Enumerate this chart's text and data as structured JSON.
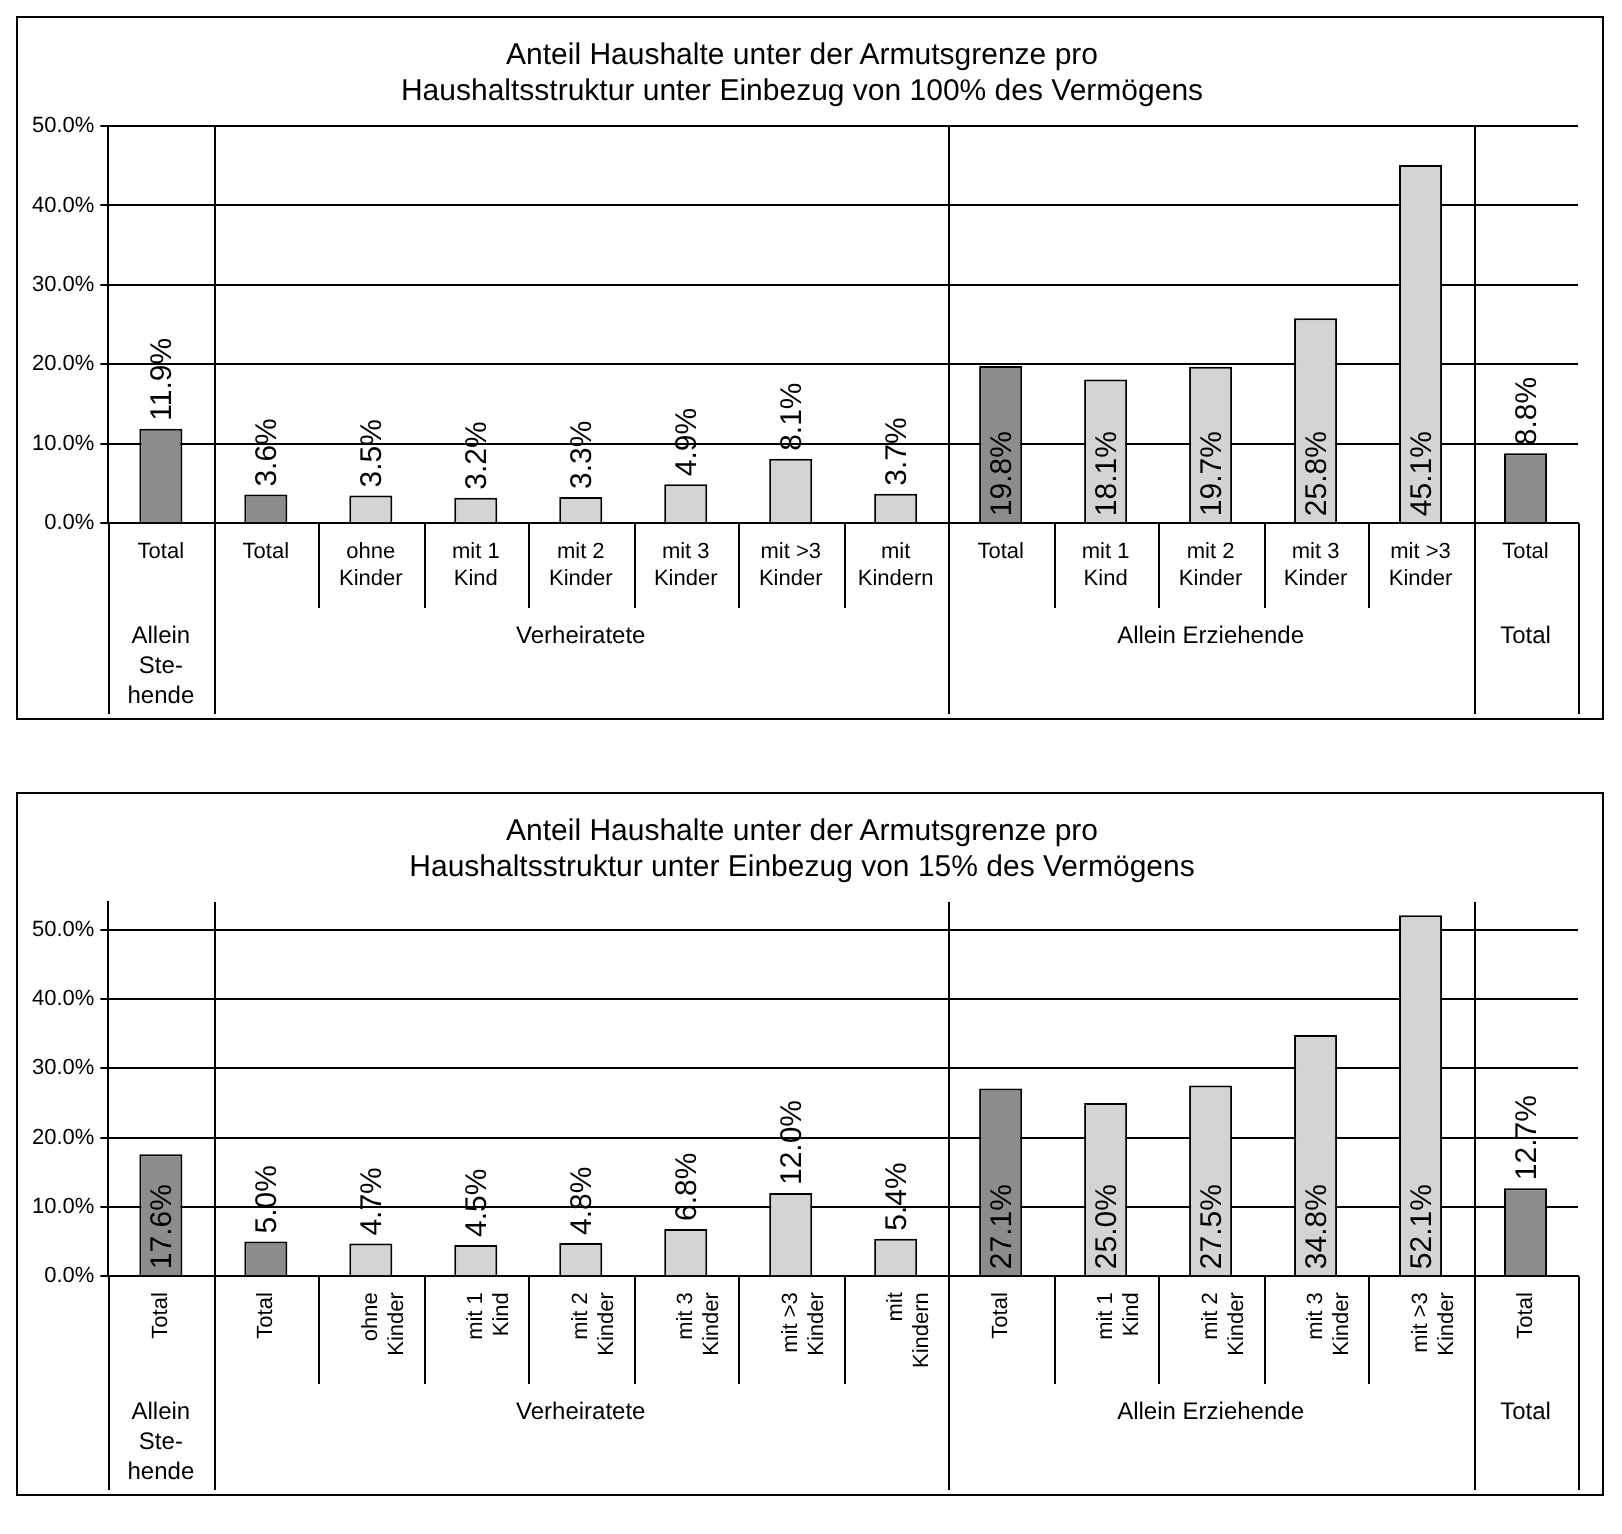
{
  "chart_data": [
    {
      "type": "bar",
      "title": "Anteil Haushalte unter der Armutsgrenze pro Haushaltsstruktur unter Einbezug von 100% des Vermögens",
      "categories": [
        "Total",
        "Total",
        "ohne Kinder",
        "mit 1 Kind",
        "mit 2 Kinder",
        "mit 3 Kinder",
        "mit >3 Kinder",
        "mit Kindern",
        "Total",
        "mit 1 Kind",
        "mit 2 Kinder",
        "mit 3 Kinder",
        "mit >3 Kinder",
        "Total"
      ],
      "values": [
        11.9,
        3.6,
        3.5,
        3.2,
        3.3,
        4.9,
        8.1,
        3.7,
        19.8,
        18.1,
        19.7,
        25.8,
        45.1,
        8.8
      ],
      "value_labels": [
        "11.9%",
        "3.6%",
        "3.5%",
        "3.2%",
        "3.3%",
        "4.9%",
        "8.1%",
        "3.7%",
        "19.8%",
        "18.1%",
        "19.7%",
        "25.8%",
        "45.1%",
        "8.8%"
      ],
      "colors": [
        "#8c8c8c",
        "#8c8c8c",
        "#d4d4d4",
        "#d4d4d4",
        "#d4d4d4",
        "#d4d4d4",
        "#d4d4d4",
        "#d4d4d4",
        "#8c8c8c",
        "#d4d4d4",
        "#d4d4d4",
        "#d4d4d4",
        "#d4d4d4",
        "#8c8c8c"
      ],
      "annotations": [
        "Allein Ste- hende",
        "Verheiratete",
        "Allein Erziehende",
        "Total"
      ],
      "ylim": [
        0,
        50
      ],
      "yticks": [
        {
          "value": 0,
          "label": "0.0%"
        },
        {
          "value": 10,
          "label": "10.0%"
        },
        {
          "value": 20,
          "label": "20.0%"
        },
        {
          "value": 30,
          "label": "30.0%"
        },
        {
          "value": 40,
          "label": "40.0%"
        },
        {
          "value": 50,
          "label": "50.0%"
        }
      ],
      "grid": "y",
      "legend": false
    },
    {
      "type": "bar",
      "title": "Anteil Haushalte unter der Armutsgrenze pro Haushaltsstruktur unter Einbezug von 15% des Vermögens",
      "categories": [
        "Total",
        "Total",
        "ohne Kinder",
        "mit 1 Kind",
        "mit 2 Kinder",
        "mit 3 Kinder",
        "mit >3 Kinder",
        "mit Kindern",
        "Total",
        "mit 1 Kind",
        "mit 2 Kinder",
        "mit 3 Kinder",
        "mit >3 Kinder",
        "Total"
      ],
      "values": [
        17.6,
        5.0,
        4.7,
        4.5,
        4.8,
        6.8,
        12.0,
        5.4,
        27.1,
        25.0,
        27.5,
        34.8,
        52.1,
        12.7
      ],
      "value_labels": [
        "17.6%",
        "5.0%",
        "4.7%",
        "4.5%",
        "4.8%",
        "6.8%",
        "12.0%",
        "5.4%",
        "27.1%",
        "25.0%",
        "27.5%",
        "34.8%",
        "52.1%",
        "12.7%"
      ],
      "colors": [
        "#8c8c8c",
        "#8c8c8c",
        "#d4d4d4",
        "#d4d4d4",
        "#d4d4d4",
        "#d4d4d4",
        "#d4d4d4",
        "#d4d4d4",
        "#8c8c8c",
        "#d4d4d4",
        "#d4d4d4",
        "#d4d4d4",
        "#d4d4d4",
        "#8c8c8c"
      ],
      "annotations": [
        "Allein Ste- hende",
        "Verheiratete",
        "Allein Erziehende",
        "Total"
      ],
      "ylim": [
        0,
        54
      ],
      "yticks": [
        {
          "value": 0,
          "label": "0.0%"
        },
        {
          "value": 10,
          "label": "10.0%"
        },
        {
          "value": 20,
          "label": "20.0%"
        },
        {
          "value": 30,
          "label": "30.0%"
        },
        {
          "value": 40,
          "label": "40.0%"
        },
        {
          "value": 50,
          "label": "50.0%"
        }
      ],
      "grid": "y",
      "legend": false
    }
  ]
}
